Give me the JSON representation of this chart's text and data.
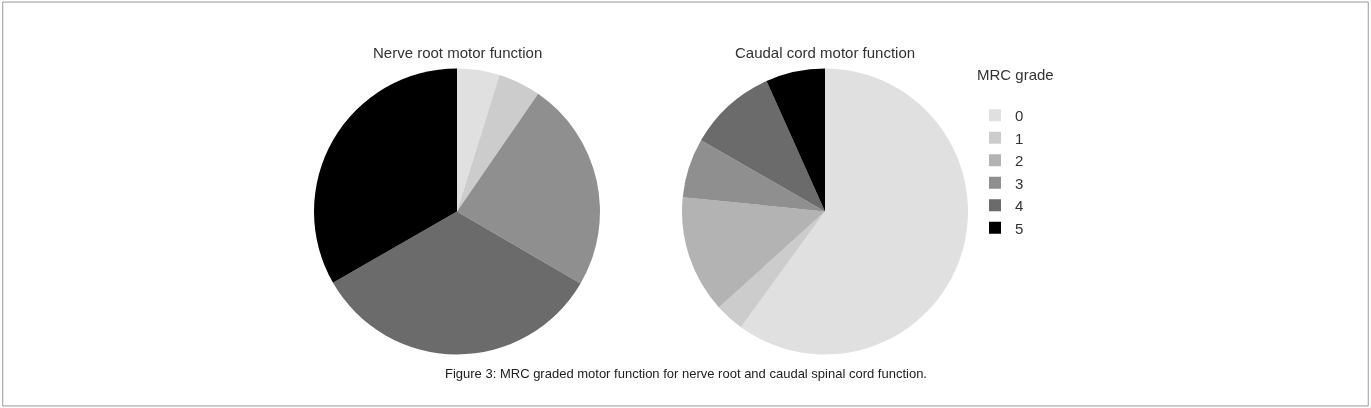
{
  "chart_data": [
    {
      "type": "pie",
      "title": "Nerve root motor function",
      "categories": [
        "0",
        "1",
        "2",
        "3",
        "4",
        "5"
      ],
      "values": [
        4.8,
        4.8,
        0,
        23.8,
        33.3,
        33.3
      ],
      "colors": [
        "#e0e0e0",
        "#cccccc",
        "#b3b3b3",
        "#8f8f8f",
        "#6b6b6b",
        "#000000"
      ],
      "legend": "right",
      "legend_title": "MRC grade",
      "annotations": [
        "Figure 3: MRC graded motor function for nerve root and caudal spinal cord function."
      ]
    },
    {
      "type": "pie",
      "title": "Caudal cord motor function",
      "categories": [
        null,
        null,
        null,
        null,
        null,
        null
      ],
      "values": [
        60,
        3.3,
        13.3,
        6.7,
        10,
        6.7
      ],
      "colors": [
        "#e0e0e0",
        "#cccccc",
        "#b3b3b3",
        "#8f8f8f",
        "#6b6b6b",
        "#000000"
      ],
      "legend": false
    }
  ]
}
